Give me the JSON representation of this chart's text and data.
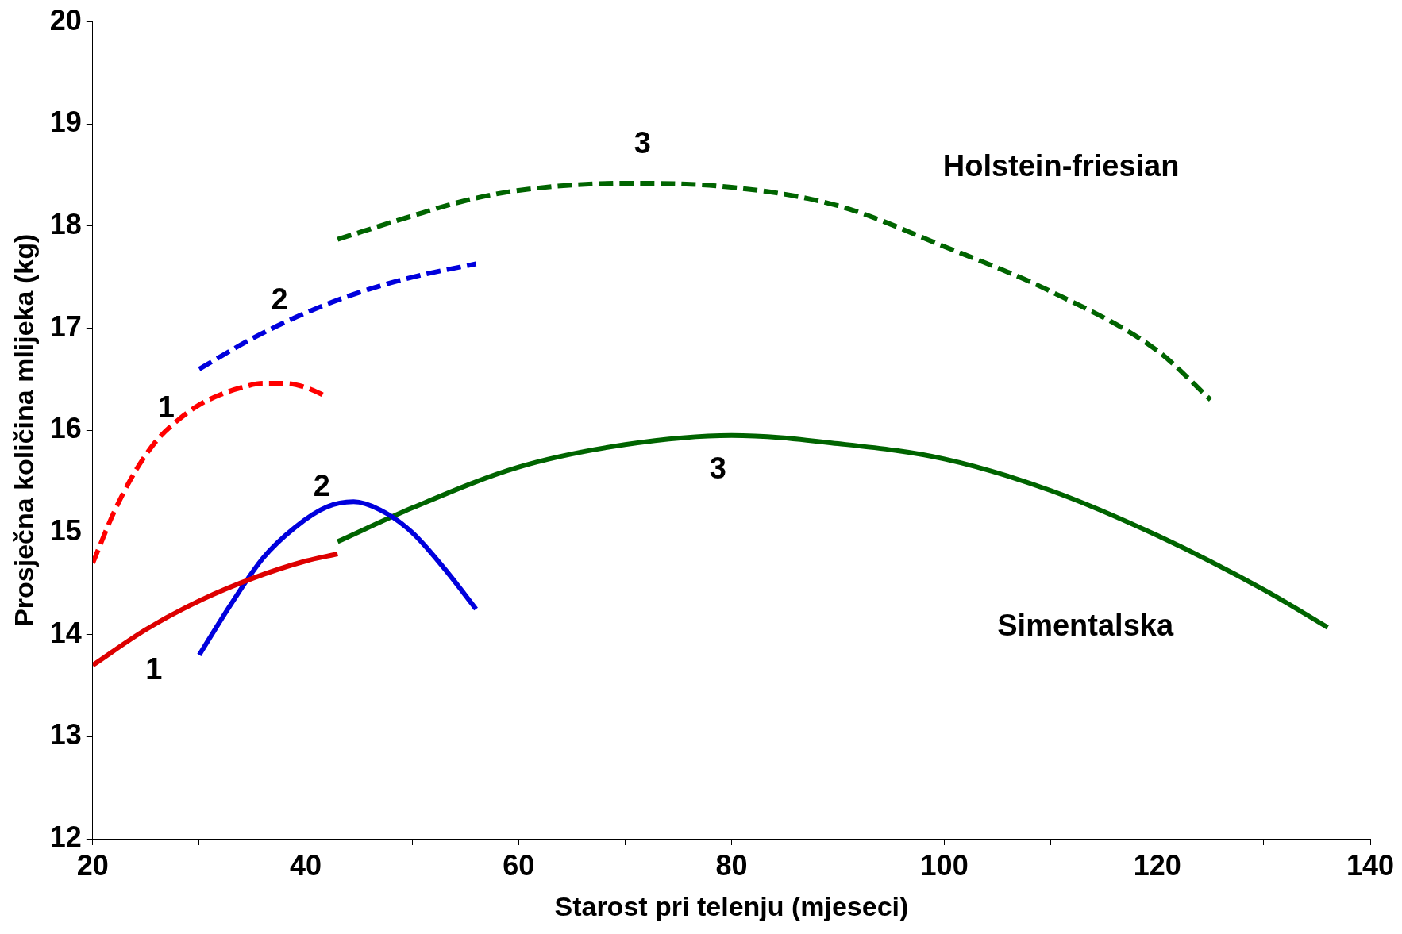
{
  "chart_data": {
    "type": "line",
    "xlabel": "Starost pri telenju (mjeseci)",
    "ylabel": "Prosječna količina mlijeka (kg)",
    "xlim": [
      20,
      140
    ],
    "xticks": [
      20,
      {
        "value": 30,
        "label": null
      },
      40,
      {
        "value": 50,
        "label": null
      },
      60,
      {
        "value": 70,
        "label": null
      },
      80,
      {
        "value": 90,
        "label": null
      },
      100,
      {
        "value": 110,
        "label": null
      },
      120,
      {
        "value": 130,
        "label": null
      },
      140
    ],
    "ylim": [
      12,
      20
    ],
    "yticks": [
      12,
      13,
      14,
      15,
      16,
      17,
      18,
      19,
      20
    ],
    "grid": false,
    "legend": false,
    "marker": "none",
    "series": [
      {
        "name": "1",
        "color": "#ff0000",
        "line_style": "dashed",
        "x": [
          20,
          22,
          24,
          26,
          28,
          30,
          32,
          34,
          36,
          38,
          40,
          42
        ],
        "values": [
          14.7,
          15.2,
          15.6,
          15.9,
          16.1,
          16.25,
          16.35,
          16.42,
          16.46,
          16.46,
          16.42,
          16.33
        ]
      },
      {
        "name": "1",
        "color": "#dd0000",
        "line_style": "solid",
        "x": [
          20,
          25,
          30,
          35,
          40,
          43
        ],
        "values": [
          13.7,
          14.05,
          14.33,
          14.55,
          14.72,
          14.79
        ]
      },
      {
        "name": "2",
        "color": "#0000dd",
        "line_style": "dashed",
        "x": [
          30,
          35,
          40,
          45,
          50,
          56
        ],
        "values": [
          16.6,
          16.9,
          17.15,
          17.35,
          17.5,
          17.63
        ]
      },
      {
        "name": "2",
        "color": "#0000dd",
        "line_style": "solid",
        "x": [
          30,
          33,
          36,
          39,
          42,
          44.5,
          47,
          50,
          53,
          56
        ],
        "values": [
          13.8,
          14.3,
          14.75,
          15.05,
          15.25,
          15.3,
          15.22,
          15.0,
          14.65,
          14.25
        ]
      },
      {
        "name": "3",
        "color": "#006400",
        "line_style": "dashed",
        "x": [
          43,
          50,
          55,
          60,
          70,
          80,
          90,
          100,
          110,
          120,
          125
        ],
        "values": [
          17.87,
          18.1,
          18.25,
          18.35,
          18.42,
          18.38,
          18.2,
          17.8,
          17.36,
          16.78,
          16.3
        ]
      },
      {
        "name": "3",
        "color": "#006400",
        "line_style": "solid",
        "x": [
          43,
          50,
          60,
          70,
          80,
          90,
          100,
          110,
          120,
          130,
          136
        ],
        "values": [
          14.91,
          15.24,
          15.64,
          15.86,
          15.95,
          15.87,
          15.72,
          15.41,
          14.97,
          14.44,
          14.07
        ]
      }
    ],
    "annotations": [
      "Holstein-friesian",
      "Simentalska"
    ]
  }
}
